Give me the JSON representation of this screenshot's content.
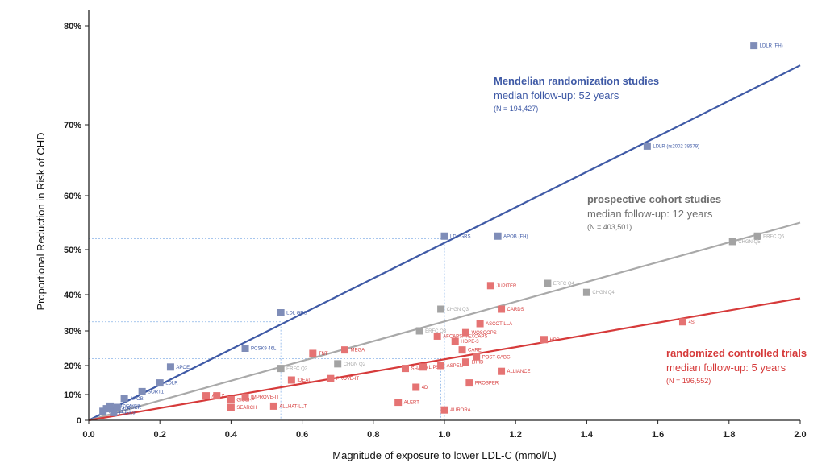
{
  "chart_data": {
    "type": "scatter",
    "xlabel": "Magnitude of exposure to lower LDL-C (mmol/L)",
    "ylabel": "Proportional Reduction in Risk of CHD",
    "xlim": [
      0,
      2.0
    ],
    "x_ticks": [
      "0.0",
      "0.2",
      "0.4",
      "0.6",
      "0.8",
      "1.0",
      "1.2",
      "1.4",
      "1.6",
      "1.8",
      "2.0"
    ],
    "y_ticks": [
      {
        "value": 0,
        "label": "0"
      },
      {
        "value": 10,
        "label": "10%"
      },
      {
        "value": 20,
        "label": "20%"
      },
      {
        "value": 30,
        "label": "30%"
      },
      {
        "value": 40,
        "label": "40%"
      },
      {
        "value": 50,
        "label": "50%"
      },
      {
        "value": 60,
        "label": "60%"
      },
      {
        "value": 70,
        "label": "70%"
      },
      {
        "value": 80,
        "label": "80%"
      }
    ],
    "guide_lines": [
      {
        "x": 1.0,
        "y": 52
      },
      {
        "x": 0.54,
        "y": 32.5
      },
      {
        "x": 0.99,
        "y": 22
      }
    ],
    "series": [
      {
        "name": "Mendelian randomization studies",
        "color": "#3f5aa6",
        "marker_color": "#7f8db8",
        "fit": {
          "x0": 0,
          "y0": 0,
          "x1": 2.0,
          "y1": 76
        },
        "legend": {
          "title": "Mendelian randomization studies",
          "subtitle": "median follow-up: 52 years",
          "n": "(N = 194,427)"
        },
        "points": [
          {
            "x": 0.04,
            "y": 3.5,
            "label": "NPC1L1"
          },
          {
            "x": 0.05,
            "y": 4.5,
            "label": "HMGCR"
          },
          {
            "x": 0.06,
            "y": 5.5,
            "label": "ABCG5/G8"
          },
          {
            "x": 0.07,
            "y": 3.0,
            "label": "PCSK9"
          },
          {
            "x": 0.08,
            "y": 5.0,
            "label": "HMGCR"
          },
          {
            "x": 0.1,
            "y": 8.5,
            "label": "APOB"
          },
          {
            "x": 0.15,
            "y": 11.0,
            "label": "SORT1"
          },
          {
            "x": 0.2,
            "y": 14.0,
            "label": "LDLR"
          },
          {
            "x": 0.23,
            "y": 19.5,
            "label": "APOE"
          },
          {
            "x": 0.44,
            "y": 25.0,
            "label": "PCSK9 46L"
          },
          {
            "x": 0.54,
            "y": 35.0,
            "label": "LDL GRS"
          },
          {
            "x": 1.0,
            "y": 52.5,
            "label": "LDL GRS"
          },
          {
            "x": 1.15,
            "y": 52.5,
            "label": "APOB (FH)"
          },
          {
            "x": 1.57,
            "y": 67.0,
            "label": "LDLR (rs2002 38679)"
          },
          {
            "x": 1.87,
            "y": 78.0,
            "label": "LDLR (FH)"
          }
        ]
      },
      {
        "name": "prospective cohort studies",
        "color": "#a9a9a9",
        "marker_color": "#a3a3a3",
        "fit": {
          "x0": 0,
          "y0": 0,
          "x1": 2.0,
          "y1": 55
        },
        "legend": {
          "title": "prospective cohort studies",
          "subtitle": "median follow-up: 12 years",
          "n": "(N = 403,501)"
        },
        "points": [
          {
            "x": 0.54,
            "y": 19.0,
            "label": "ERFC Q2"
          },
          {
            "x": 0.7,
            "y": 20.5,
            "label": "CHGN Q2"
          },
          {
            "x": 0.93,
            "y": 30.0,
            "label": "ERFC Q3"
          },
          {
            "x": 0.99,
            "y": 36.0,
            "label": "CHGN Q3"
          },
          {
            "x": 1.29,
            "y": 42.5,
            "label": "ERFC Q4"
          },
          {
            "x": 1.4,
            "y": 40.5,
            "label": "CHGN Q4"
          },
          {
            "x": 1.81,
            "y": 51.5,
            "label": "CHGN Q5"
          },
          {
            "x": 1.88,
            "y": 52.5,
            "label": "ERFC Q5"
          }
        ]
      },
      {
        "name": "randomized controlled trials",
        "color": "#d63a3a",
        "marker_color": "#e57373",
        "fit": {
          "x0": 0,
          "y0": 0,
          "x1": 2.0,
          "y1": 39
        },
        "legend": {
          "title": "randomized controlled trials",
          "subtitle": "median follow-up: 5 years",
          "n": "(N = 196,552)"
        },
        "points": [
          {
            "x": 0.33,
            "y": 9.5,
            "label": "A to Z"
          },
          {
            "x": 0.36,
            "y": 9.5,
            "label": ""
          },
          {
            "x": 0.4,
            "y": 5.0,
            "label": "SEARCH"
          },
          {
            "x": 0.4,
            "y": 8.0,
            "label": "GISSI-P"
          },
          {
            "x": 0.44,
            "y": 9.0,
            "label": "IMPROVE-IT"
          },
          {
            "x": 0.52,
            "y": 5.5,
            "label": "ALLHAT-LLT"
          },
          {
            "x": 0.57,
            "y": 15.0,
            "label": "IDEAL"
          },
          {
            "x": 0.63,
            "y": 23.5,
            "label": "TNT"
          },
          {
            "x": 0.68,
            "y": 15.5,
            "label": "PROVE-IT"
          },
          {
            "x": 0.72,
            "y": 24.5,
            "label": "MEGA"
          },
          {
            "x": 0.87,
            "y": 7.0,
            "label": "ALERT"
          },
          {
            "x": 0.89,
            "y": 19.0,
            "label": "SHARP"
          },
          {
            "x": 0.92,
            "y": 12.5,
            "label": "4D"
          },
          {
            "x": 0.94,
            "y": 19.5,
            "label": "LIPS"
          },
          {
            "x": 0.98,
            "y": 28.5,
            "label": "AFCAPS/ TEXCAPS"
          },
          {
            "x": 0.99,
            "y": 20.0,
            "label": "ASPEN"
          },
          {
            "x": 1.0,
            "y": 4.0,
            "label": "AURORA"
          },
          {
            "x": 1.03,
            "y": 27.0,
            "label": "HOPE-3"
          },
          {
            "x": 1.05,
            "y": 24.5,
            "label": "CARE"
          },
          {
            "x": 1.06,
            "y": 21.0,
            "label": "LIPID"
          },
          {
            "x": 1.06,
            "y": 29.5,
            "label": "WOSCOPS"
          },
          {
            "x": 1.07,
            "y": 14.0,
            "label": "PROSPER"
          },
          {
            "x": 1.09,
            "y": 22.5,
            "label": "POST-CABG"
          },
          {
            "x": 1.1,
            "y": 32.0,
            "label": "ASCOT-LLA"
          },
          {
            "x": 1.13,
            "y": 42.0,
            "label": "JUPITER"
          },
          {
            "x": 1.16,
            "y": 18.0,
            "label": "ALLIANCE"
          },
          {
            "x": 1.16,
            "y": 36.0,
            "label": "CARDS"
          },
          {
            "x": 1.28,
            "y": 27.5,
            "label": "HPS"
          },
          {
            "x": 1.67,
            "y": 32.5,
            "label": "4S"
          }
        ]
      }
    ]
  }
}
